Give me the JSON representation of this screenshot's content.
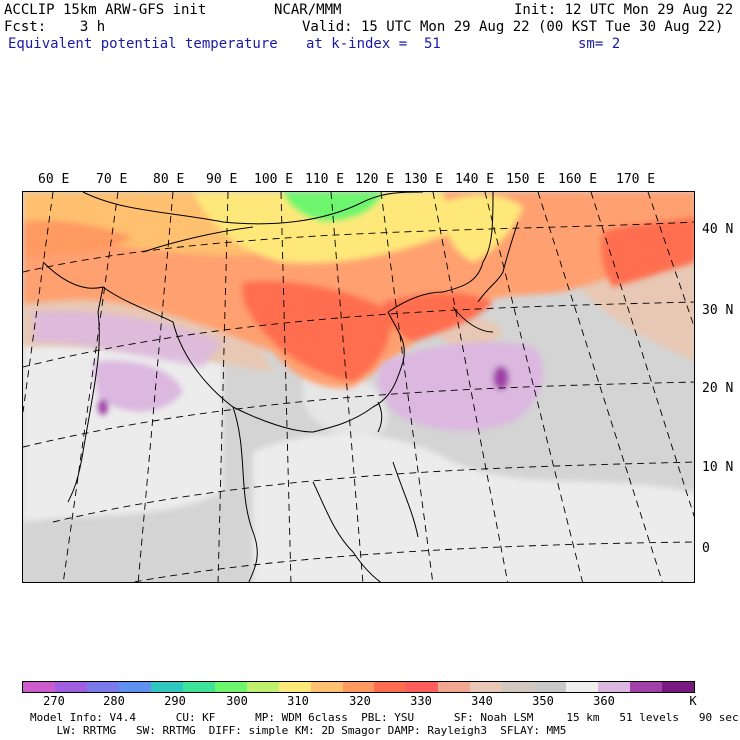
{
  "header": {
    "line1_left": "ACCLIP 15km ARW-GFS init",
    "line1_mid": "NCAR/MMM",
    "line1_right": "Init: 12 UTC Mon 29 Aug 22",
    "line2_left": "Fcst:    3 h",
    "line2_right": "Valid: 15 UTC Mon 29 Aug 22 (00 KST Tue 30 Aug 22)",
    "line3_left": "Equivalent potential temperature",
    "line3_mid": "at k-index =  51",
    "line3_right": "sm= 2"
  },
  "map": {
    "lon_labels": [
      "60 E",
      "70 E",
      "80 E",
      "90 E",
      "100 E",
      "110 E",
      "120 E",
      "130 E",
      "140 E",
      "150 E",
      "160 E",
      "170 E"
    ],
    "lat_labels": [
      "40 N",
      "30 N",
      "20 N",
      "10 N",
      "0"
    ]
  },
  "colorbar": {
    "colors": [
      "#cc5ccc",
      "#a05fe0",
      "#7a7ae8",
      "#5f91f0",
      "#2fc7c0",
      "#3ee39a",
      "#6ef56e",
      "#bff06e",
      "#ffe87a",
      "#ffc070",
      "#ff9a60",
      "#ff6e50",
      "#ff5e5e",
      "#f2a890",
      "#e8c8b4",
      "#d2c8c0",
      "#c8c8c8",
      "#efefef",
      "#dcb8e0",
      "#a040a8",
      "#7a1a80"
    ],
    "ticks": [
      "270",
      "280",
      "290",
      "300",
      "310",
      "320",
      "330",
      "340",
      "350",
      "360"
    ],
    "unit": "K"
  },
  "footer": {
    "line1": "Model Info: V4.4      CU: KF      MP: WDM 6class  PBL: YSU      SF: Noah LSM     15 km   51 levels   90 sec",
    "line2": "    LW: RRTMG   SW: RRTMG  DIFF: simple KM: 2D Smagor DAMP: Rayleigh3  SFLAY: MM5"
  }
}
